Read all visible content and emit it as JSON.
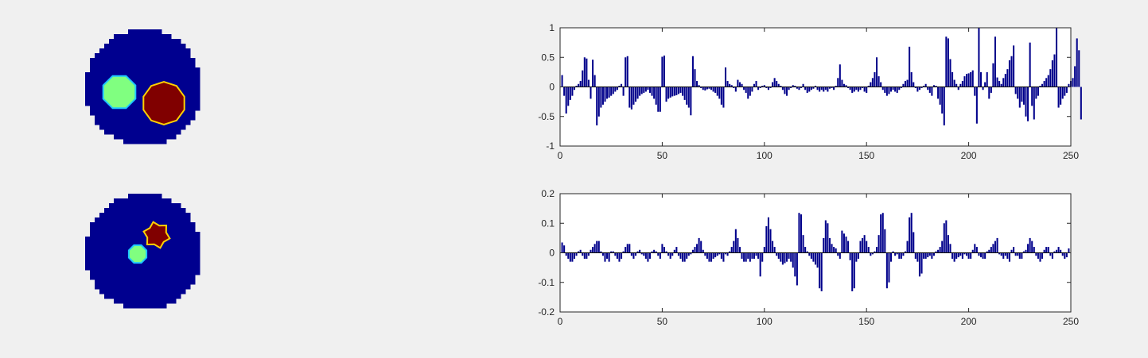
{
  "colors": {
    "background": "#f0f0f0",
    "disk": "#00008f",
    "inclusion_low": "#80ff80",
    "inclusion_high": "#800000",
    "edge_low": "#1ec8ff",
    "edge_high": "#ffd200",
    "bar": "#00008b",
    "axes_bg": "#ffffff",
    "axis": "#262626"
  },
  "images": [
    {
      "name": "reconstruction-top",
      "type": "colormap-disk"
    },
    {
      "name": "reconstruction-bottom",
      "type": "colormap-disk"
    }
  ],
  "chart_data": [
    {
      "type": "bar",
      "title": "",
      "xlabel": "",
      "ylabel": "",
      "xlim": [
        0,
        250
      ],
      "ylim": [
        -1,
        1
      ],
      "xticks": [
        "0",
        "50",
        "100",
        "150",
        "200",
        "250"
      ],
      "yticks": [
        "-1",
        "-0.5",
        "0",
        "0.5",
        "1"
      ],
      "grid": false,
      "values": [
        0.2,
        -0.15,
        -0.45,
        -0.32,
        -0.22,
        -0.15,
        -0.05,
        0.02,
        0.05,
        0.1,
        0.28,
        0.5,
        0.48,
        0.12,
        -0.2,
        0.46,
        0.2,
        -0.65,
        -0.5,
        -0.35,
        -0.3,
        -0.25,
        -0.2,
        -0.18,
        -0.15,
        -0.12,
        -0.08,
        -0.05,
        0.02,
        0.05,
        -0.15,
        0.5,
        0.52,
        -0.35,
        -0.38,
        -0.3,
        -0.25,
        -0.2,
        -0.15,
        -0.12,
        -0.1,
        -0.08,
        -0.05,
        -0.1,
        -0.15,
        -0.2,
        -0.3,
        -0.42,
        -0.42,
        0.51,
        0.53,
        -0.25,
        -0.2,
        -0.18,
        -0.16,
        -0.15,
        -0.14,
        -0.12,
        -0.1,
        -0.15,
        -0.22,
        -0.3,
        -0.35,
        -0.48,
        0.52,
        0.3,
        0.1,
        0.03,
        -0.02,
        -0.05,
        -0.06,
        -0.04,
        -0.03,
        -0.05,
        -0.08,
        -0.1,
        -0.15,
        -0.2,
        -0.3,
        -0.35,
        0.33,
        0.1,
        0.05,
        0.03,
        -0.02,
        -0.08,
        0.12,
        0.08,
        0.05,
        -0.05,
        -0.1,
        -0.2,
        -0.15,
        -0.08,
        0.05,
        0.1,
        -0.05,
        -0.02,
        0.02,
        0.03,
        -0.02,
        -0.05,
        -0.02,
        0.08,
        0.15,
        0.1,
        0.05,
        0.02,
        -0.05,
        -0.12,
        -0.15,
        -0.05,
        -0.02,
        0.03,
        0.02,
        -0.03,
        -0.05,
        -0.02,
        0.05,
        -0.05,
        -0.1,
        -0.08,
        -0.05,
        -0.03,
        0.02,
        -0.05,
        -0.08,
        -0.05,
        -0.08,
        -0.05,
        -0.08,
        -0.03,
        -0.02,
        -0.05,
        0.02,
        0.15,
        0.38,
        0.12,
        0.05,
        0.03,
        -0.02,
        -0.05,
        -0.1,
        -0.08,
        -0.05,
        -0.08,
        -0.05,
        -0.02,
        -0.08,
        -0.1,
        0.02,
        0.08,
        0.15,
        0.25,
        0.5,
        0.18,
        0.08,
        -0.05,
        -0.1,
        -0.15,
        -0.12,
        -0.08,
        -0.05,
        -0.08,
        -0.1,
        -0.05,
        -0.02,
        0.05,
        0.1,
        0.12,
        0.68,
        0.25,
        0.08,
        -0.02,
        -0.08,
        -0.05,
        -0.02,
        0.02,
        0.05,
        -0.05,
        -0.1,
        -0.15,
        0.03,
        0.02,
        -0.2,
        -0.3,
        -0.45,
        -0.65,
        0.85,
        0.82,
        0.47,
        0.25,
        0.12,
        0.05,
        -0.05,
        0.05,
        0.1,
        0.18,
        0.22,
        0.23,
        0.25,
        0.28,
        -0.15,
        -0.62,
        1.0,
        0.25,
        -0.05,
        0.08,
        0.25,
        -0.2,
        -0.1,
        0.4,
        0.85,
        0.16,
        0.1,
        0.05,
        0.15,
        0.22,
        0.3,
        0.45,
        0.52,
        0.7,
        -0.12,
        -0.2,
        -0.35,
        -0.25,
        -0.3,
        -0.5,
        -0.58,
        0.75,
        -0.32,
        -0.55,
        -0.2,
        -0.15,
        0.02,
        0.05,
        0.1,
        0.15,
        0.2,
        0.3,
        0.45,
        0.55,
        1.0,
        -0.35,
        -0.3,
        -0.2,
        -0.15,
        -0.1,
        0.05,
        0.1,
        0.15,
        0.35,
        0.82,
        0.62,
        -0.55
      ]
    },
    {
      "type": "bar",
      "title": "",
      "xlabel": "",
      "ylabel": "",
      "xlim": [
        0,
        250
      ],
      "ylim": [
        -0.2,
        0.2
      ],
      "xticks": [
        "0",
        "50",
        "100",
        "150",
        "200",
        "250"
      ],
      "yticks": [
        "-0.2",
        "-0.1",
        "0",
        "0.1",
        "0.2"
      ],
      "grid": false,
      "values": [
        0.035,
        0.025,
        -0.01,
        -0.02,
        -0.03,
        -0.03,
        -0.02,
        -0.01,
        0.005,
        0.01,
        -0.01,
        -0.02,
        -0.02,
        -0.01,
        0.01,
        0.02,
        0.03,
        0.04,
        0.04,
        0.005,
        -0.01,
        -0.03,
        -0.02,
        -0.03,
        0.005,
        0.005,
        -0.01,
        -0.02,
        -0.03,
        -0.02,
        0.005,
        0.02,
        0.03,
        0.03,
        -0.01,
        -0.02,
        -0.01,
        0.005,
        0.01,
        -0.005,
        -0.01,
        -0.02,
        -0.03,
        -0.02,
        0.005,
        0.01,
        0.005,
        -0.01,
        -0.02,
        0.03,
        0.02,
        0.005,
        -0.01,
        -0.02,
        -0.01,
        0.01,
        0.02,
        -0.01,
        -0.02,
        -0.03,
        -0.03,
        -0.02,
        -0.01,
        -0.005,
        0.01,
        0.02,
        0.03,
        0.05,
        0.04,
        0.01,
        -0.01,
        -0.02,
        -0.03,
        -0.03,
        -0.02,
        -0.015,
        -0.01,
        -0.005,
        -0.02,
        -0.03,
        -0.005,
        -0.01,
        0.005,
        0.02,
        0.04,
        0.08,
        0.05,
        0.02,
        -0.02,
        -0.03,
        -0.03,
        -0.02,
        -0.03,
        -0.02,
        -0.02,
        -0.01,
        -0.02,
        -0.08,
        -0.03,
        0.02,
        0.09,
        0.12,
        0.08,
        0.04,
        0.02,
        -0.01,
        -0.02,
        -0.03,
        -0.04,
        -0.035,
        -0.03,
        -0.02,
        -0.03,
        -0.05,
        -0.08,
        -0.11,
        0.135,
        0.13,
        0.06,
        0.02,
        0.005,
        -0.01,
        -0.02,
        -0.03,
        -0.04,
        -0.05,
        -0.12,
        -0.13,
        0.05,
        0.11,
        0.1,
        0.05,
        0.03,
        0.02,
        0.015,
        -0.01,
        -0.02,
        0.075,
        0.065,
        0.055,
        0.04,
        -0.025,
        -0.13,
        -0.12,
        -0.03,
        -0.02,
        0.04,
        0.05,
        0.06,
        0.04,
        0.02,
        -0.01,
        -0.005,
        0.005,
        0.02,
        0.06,
        0.13,
        0.135,
        0.08,
        -0.12,
        -0.1,
        -0.03,
        0.005,
        -0.01,
        -0.005,
        -0.02,
        -0.02,
        -0.01,
        0.005,
        0.04,
        0.12,
        0.135,
        0.07,
        -0.02,
        -0.03,
        -0.08,
        -0.07,
        -0.02,
        -0.02,
        -0.015,
        -0.01,
        -0.02,
        -0.01,
        0.005,
        0.01,
        0.02,
        0.04,
        0.1,
        0.11,
        0.06,
        0.03,
        -0.02,
        -0.03,
        -0.02,
        -0.015,
        -0.01,
        -0.02,
        -0.005,
        -0.01,
        -0.02,
        -0.02,
        0.01,
        0.03,
        0.02,
        -0.01,
        -0.015,
        -0.02,
        -0.02,
        0.005,
        0.01,
        0.02,
        0.03,
        0.04,
        0.05,
        -0.005,
        -0.01,
        -0.02,
        -0.01,
        -0.02,
        -0.03,
        0.01,
        0.02,
        -0.01,
        -0.01,
        -0.02,
        -0.02,
        0.005,
        0.01,
        0.03,
        0.05,
        0.04,
        0.02,
        -0.01,
        -0.02,
        -0.03,
        -0.02,
        0.01,
        0.02,
        0.02,
        -0.01,
        -0.02,
        0.005,
        0.01,
        0.02,
        0.01,
        -0.01,
        -0.02,
        -0.015,
        0.015
      ]
    }
  ]
}
